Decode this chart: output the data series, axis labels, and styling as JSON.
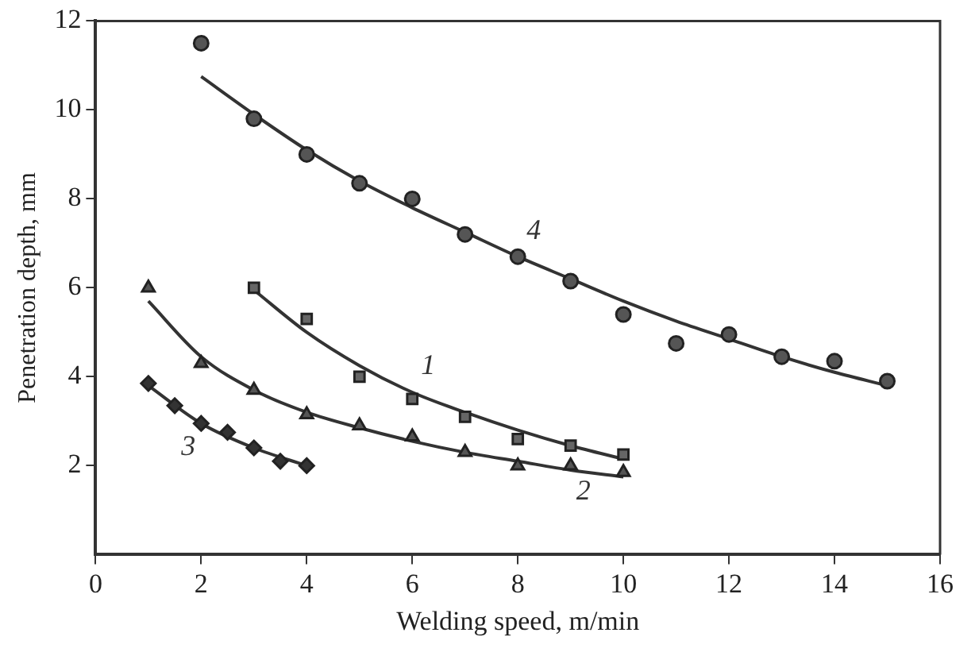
{
  "chart_data": {
    "type": "scatter",
    "xlabel": "Welding speed, m/min",
    "ylabel": "Penetration depth, mm",
    "xlim": [
      0,
      16
    ],
    "ylim": [
      0,
      12
    ],
    "xticks": [
      0,
      2,
      4,
      6,
      8,
      10,
      12,
      14,
      16
    ],
    "yticks": [
      2,
      4,
      6,
      8,
      10,
      12
    ],
    "grid": false,
    "legend": false,
    "series": [
      {
        "marker": "circle",
        "color": "#555555",
        "x": [
          2,
          3,
          4,
          5,
          6,
          7,
          8,
          9,
          10,
          11,
          12,
          13,
          14,
          15
        ],
        "values": [
          11.5,
          9.8,
          9.0,
          8.35,
          8.0,
          7.2,
          6.7,
          6.15,
          5.4,
          4.75,
          4.95,
          4.45,
          4.35,
          3.9
        ]
      },
      {
        "type": "line",
        "name": "4",
        "marker": "none",
        "color": "#333333",
        "x": [
          2,
          3,
          4,
          5,
          6,
          7,
          8,
          9,
          10,
          11,
          12,
          13,
          14,
          15
        ],
        "values": [
          10.75,
          9.9,
          9.1,
          8.4,
          7.8,
          7.25,
          6.7,
          6.2,
          5.7,
          5.25,
          4.85,
          4.45,
          4.1,
          3.8
        ]
      },
      {
        "marker": "square",
        "color": "#666666",
        "x": [
          3,
          4,
          5,
          6,
          7,
          8,
          9,
          10
        ],
        "values": [
          6.0,
          5.3,
          4.0,
          3.5,
          3.1,
          2.6,
          2.45,
          2.25
        ]
      },
      {
        "type": "line",
        "name": "1",
        "marker": "none",
        "color": "#333333",
        "x": [
          3,
          4,
          5,
          6,
          7,
          8,
          9,
          10
        ],
        "values": [
          5.95,
          5.0,
          4.25,
          3.65,
          3.2,
          2.8,
          2.45,
          2.15
        ]
      },
      {
        "marker": "triangle",
        "color": "#555555",
        "x": [
          1,
          2,
          3,
          4,
          5,
          6,
          7,
          8,
          9,
          10
        ],
        "values": [
          6.0,
          4.3,
          3.7,
          3.15,
          2.9,
          2.65,
          2.3,
          2.0,
          2.0,
          1.85
        ]
      },
      {
        "type": "line",
        "name": "2",
        "marker": "none",
        "color": "#333333",
        "x": [
          1,
          2,
          3,
          4,
          5,
          6,
          7,
          8,
          9,
          10
        ],
        "values": [
          5.7,
          4.45,
          3.7,
          3.2,
          2.85,
          2.55,
          2.3,
          2.1,
          1.9,
          1.75
        ]
      },
      {
        "marker": "diamond",
        "color": "#333333",
        "x": [
          1,
          1.5,
          2,
          2.5,
          3,
          3.5,
          4
        ],
        "values": [
          3.85,
          3.35,
          2.95,
          2.75,
          2.4,
          2.1,
          2.0
        ]
      },
      {
        "type": "line",
        "name": "3",
        "marker": "none",
        "color": "#333333",
        "x": [
          1,
          2,
          3,
          4
        ],
        "values": [
          3.8,
          2.95,
          2.4,
          2.0
        ]
      }
    ]
  }
}
